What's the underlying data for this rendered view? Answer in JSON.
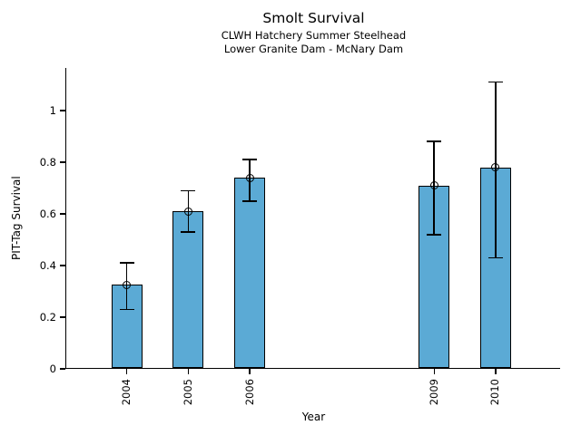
{
  "chart_data": {
    "type": "bar",
    "title": "Smolt Survival",
    "subtitle": [
      "CLWH Hatchery Summer Steelhead",
      "Lower Granite Dam - McNary Dam"
    ],
    "xlabel": "Year",
    "ylabel": "PIT-Tag Survival",
    "categories": [
      2004,
      2005,
      2006,
      2009,
      2010
    ],
    "values": [
      0.325,
      0.61,
      0.74,
      0.71,
      0.78
    ],
    "error_low": [
      0.23,
      0.53,
      0.65,
      0.52,
      0.43
    ],
    "error_high": [
      0.41,
      0.69,
      0.81,
      0.88,
      1.11
    ],
    "yticks": [
      0,
      0.2,
      0.4,
      0.6,
      0.8,
      1
    ],
    "xlim": [
      2003,
      2011.05
    ],
    "ylim": [
      0,
      1.165
    ],
    "bar_width_years": 0.5,
    "grid": false,
    "legend": null,
    "marker": "open-circle",
    "colors": {
      "bar_fill": "#5baad5",
      "bar_edge": "#000000",
      "error_bar": "#000000",
      "text": "#000000",
      "background": "#ffffff"
    }
  }
}
